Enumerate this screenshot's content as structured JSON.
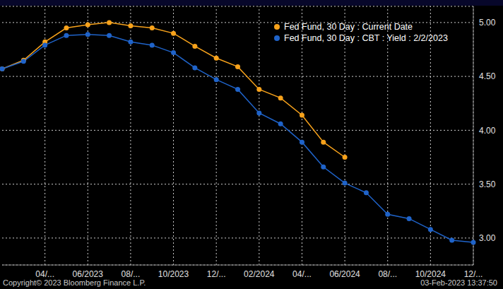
{
  "chart_data": {
    "type": "line",
    "categories": [
      null,
      null,
      "04/...",
      null,
      "06/2023",
      null,
      "08/...",
      null,
      "10/2023",
      null,
      "12/...",
      null,
      "02/2024",
      null,
      "04/...",
      null,
      "06/2024",
      null,
      "08/...",
      null,
      "10/2024",
      null,
      "12/..."
    ],
    "series": [
      {
        "name": "Fed Fund, 30 Day : Current Date",
        "color": "#f7a21b",
        "marker": "circle",
        "values": [
          4.57,
          4.65,
          4.82,
          4.95,
          4.98,
          5.0,
          4.97,
          4.95,
          4.9,
          4.78,
          4.67,
          4.59,
          4.38,
          4.3,
          4.14,
          3.89,
          3.75,
          null,
          null,
          null,
          null,
          null,
          null
        ]
      },
      {
        "name": "Fed Fund, 30 Day : CBT : Yield : 2/2/2023",
        "color": "#1f63c9",
        "marker": "circle",
        "values": [
          4.57,
          4.64,
          4.79,
          4.88,
          4.89,
          4.88,
          4.82,
          4.79,
          4.72,
          4.58,
          4.47,
          4.38,
          4.16,
          4.06,
          3.89,
          3.66,
          3.51,
          3.42,
          3.22,
          3.18,
          3.08,
          2.98,
          2.96
        ]
      }
    ],
    "ylim": [
      2.75,
      5.15
    ],
    "yticks": [
      {
        "value": 3,
        "label": "3.00"
      },
      {
        "value": 3.5,
        "label": "3.50"
      },
      {
        "value": 4,
        "label": "4.00"
      },
      {
        "value": 4.5,
        "label": "4.50"
      },
      {
        "value": 5,
        "label": "5.00"
      }
    ],
    "grid": true,
    "legend": "upper right",
    "footer_left": "Copyright© 2023 Bloomberg Finance L.P.",
    "footer_right": "03-Feb-2023 13:37:50"
  }
}
